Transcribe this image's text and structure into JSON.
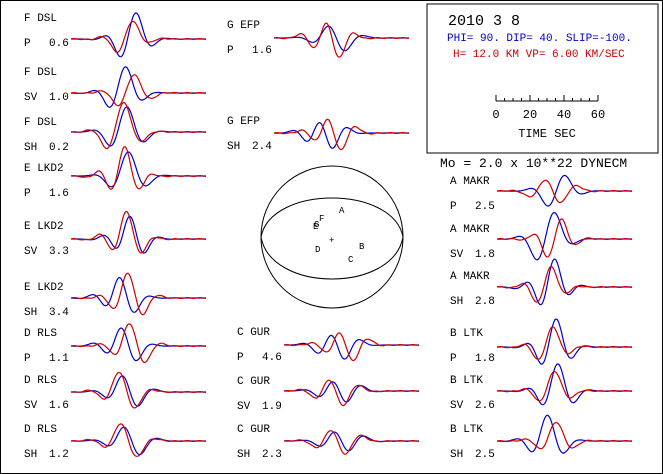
{
  "header": {
    "date": "2010  3  8",
    "mechanism": "PHI=  90. DIP= 40. SLIP=-100.",
    "depth_velocity": "H= 12.0 KM  VP= 6.00 KM/SEC",
    "moment": "Mo =  2.0 x 10**22 DYNECM",
    "blue_color": "#0000cc",
    "red_color": "#cc0000"
  },
  "time_scale": {
    "ticks": [
      "0",
      "20",
      "40",
      "60"
    ],
    "label": "TIME  SEC",
    "max_seconds": 60
  },
  "traces": [
    {
      "station": "F DSL",
      "phase": "P",
      "amp": "0.6",
      "seed": 1
    },
    {
      "station": "F DSL",
      "phase": "SV",
      "amp": "1.0",
      "seed": 2
    },
    {
      "station": "F DSL",
      "phase": "SH",
      "amp": "0.2",
      "seed": 3
    },
    {
      "station": "E LKD2",
      "phase": "P",
      "amp": "1.6",
      "seed": 4
    },
    {
      "station": "E LKD2",
      "phase": "SV",
      "amp": "3.3",
      "seed": 5
    },
    {
      "station": "E LKD2",
      "phase": "SH",
      "amp": "3.4",
      "seed": 6
    },
    {
      "station": "D RLS",
      "phase": "P",
      "amp": "1.1",
      "seed": 7
    },
    {
      "station": "D RLS",
      "phase": "SV",
      "amp": "1.6",
      "seed": 8
    },
    {
      "station": "D RLS",
      "phase": "SH",
      "amp": "1.2",
      "seed": 9
    },
    {
      "station": "G EFP",
      "phase": "P",
      "amp": "1.6",
      "seed": 10
    },
    {
      "station": "G EFP",
      "phase": "SH",
      "amp": "2.4",
      "seed": 11
    },
    {
      "station": "C GUR",
      "phase": "P",
      "amp": "4.6",
      "seed": 12
    },
    {
      "station": "C GUR",
      "phase": "SV",
      "amp": "1.9",
      "seed": 13
    },
    {
      "station": "C GUR",
      "phase": "SH",
      "amp": "2.3",
      "seed": 14
    },
    {
      "station": "A MAKR",
      "phase": "P",
      "amp": "2.5",
      "seed": 15
    },
    {
      "station": "A MAKR",
      "phase": "SV",
      "amp": "1.8",
      "seed": 16
    },
    {
      "station": "A MAKR",
      "phase": "SH",
      "amp": "2.8",
      "seed": 17
    },
    {
      "station": "B LTK",
      "phase": "P",
      "amp": "1.8",
      "seed": 18
    },
    {
      "station": "B LTK",
      "phase": "SV",
      "amp": "2.6",
      "seed": 19
    },
    {
      "station": "B LTK",
      "phase": "SH",
      "amp": "2.5",
      "seed": 20
    }
  ],
  "focal_sphere": {
    "stations": [
      "A",
      "B",
      "C",
      "D",
      "E",
      "F",
      "G"
    ],
    "center_mark": "+"
  }
}
